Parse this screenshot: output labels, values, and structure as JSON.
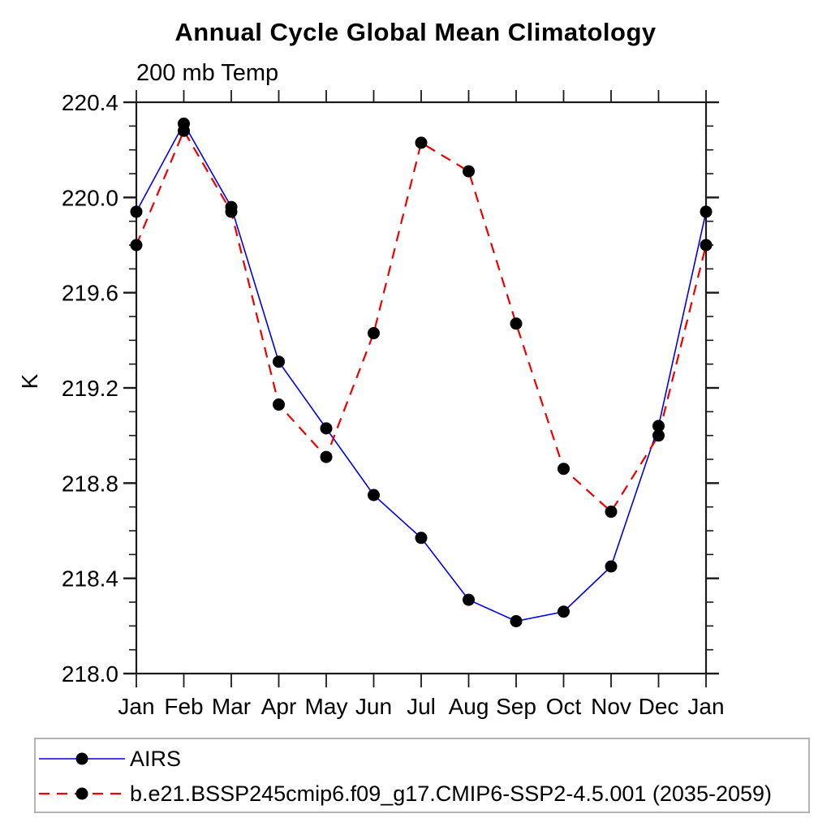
{
  "chart": {
    "title": "Annual Cycle Global Mean Climatology",
    "subtitle": "200 mb Temp",
    "ylabel": "K"
  },
  "chart_data": {
    "type": "line",
    "title": "Annual Cycle Global Mean Climatology",
    "subtitle": "200 mb Temp",
    "xlabel": "",
    "ylabel": "K",
    "categories": [
      "Jan",
      "Feb",
      "Mar",
      "Apr",
      "May",
      "Jun",
      "Jul",
      "Aug",
      "Sep",
      "Oct",
      "Nov",
      "Dec",
      "Jan"
    ],
    "ylim": [
      218.0,
      220.4
    ],
    "y_major_ticks": [
      218.0,
      218.4,
      218.8,
      219.2,
      219.6,
      220.0,
      220.4
    ],
    "y_minor_step": 0.1,
    "grid": false,
    "legend_position": "bottom",
    "frame_color": "#1a1a1a",
    "marker_color": "#000000",
    "series": [
      {
        "name": "AIRS",
        "color": "#0000ee",
        "line_style": "solid",
        "marker": "circle",
        "values": [
          219.94,
          220.31,
          219.96,
          219.31,
          219.03,
          218.75,
          218.57,
          218.31,
          218.22,
          218.26,
          218.45,
          219.04,
          219.94
        ]
      },
      {
        "name": "b.e21.BSSP245cmip6.f09_g17.CMIP6-SSP2-4.5.001 (2035-2059)",
        "color": "#ee0000",
        "line_style": "dashed",
        "marker": "circle",
        "values": [
          219.8,
          220.28,
          219.94,
          219.13,
          218.91,
          219.43,
          220.23,
          220.11,
          219.47,
          218.86,
          218.68,
          219.0,
          219.8
        ]
      }
    ]
  }
}
